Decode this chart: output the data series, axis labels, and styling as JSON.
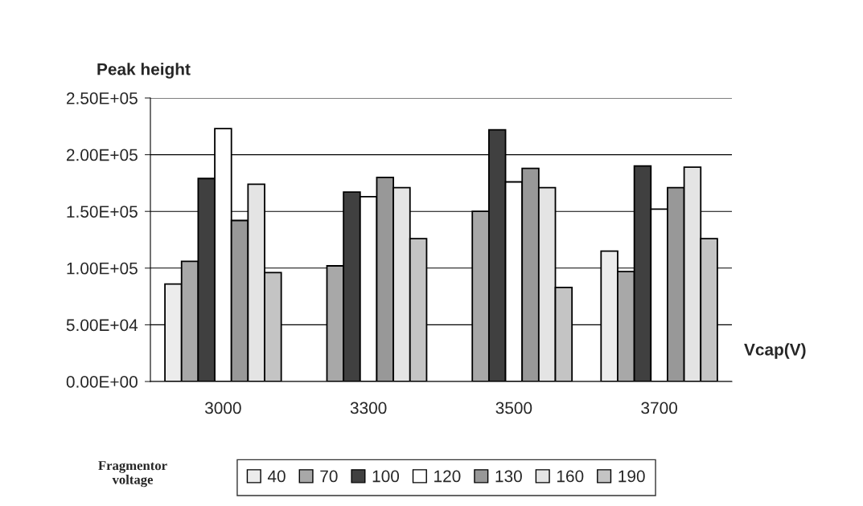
{
  "chart_data": {
    "type": "bar",
    "ylabel": "Peak height",
    "xlabel": "Vcap(V)",
    "legend_title": "Fragmentor\nvoltage",
    "categories": [
      "3000",
      "3300",
      "3500",
      "3700"
    ],
    "series": [
      {
        "name": "40",
        "color": "#ececec",
        "values": [
          86000,
          null,
          null,
          115000
        ]
      },
      {
        "name": "70",
        "color": "#a8a8a8",
        "values": [
          106000,
          102000,
          150000,
          97000
        ]
      },
      {
        "name": "100",
        "color": "#404040",
        "values": [
          179000,
          167000,
          222000,
          190000
        ]
      },
      {
        "name": "120",
        "color": "#ffffff",
        "values": [
          223000,
          163000,
          176000,
          152000
        ]
      },
      {
        "name": "130",
        "color": "#989898",
        "values": [
          142000,
          180000,
          188000,
          171000
        ]
      },
      {
        "name": "160",
        "color": "#e4e4e4",
        "values": [
          174000,
          171000,
          171000,
          189000
        ]
      },
      {
        "name": "190",
        "color": "#c4c4c4",
        "values": [
          96000,
          126000,
          83000,
          126000
        ]
      }
    ],
    "ylim": [
      0,
      250000
    ],
    "yticks": [
      {
        "value": 0,
        "label": "0.00E+00"
      },
      {
        "value": 50000,
        "label": "5.00E+04"
      },
      {
        "value": 100000,
        "label": "1.00E+05"
      },
      {
        "value": 150000,
        "label": "1.50E+05"
      },
      {
        "value": 200000,
        "label": "2.00E+05"
      },
      {
        "value": 250000,
        "label": "2.50E+05"
      }
    ],
    "grid": "y",
    "legend": "bottom"
  }
}
